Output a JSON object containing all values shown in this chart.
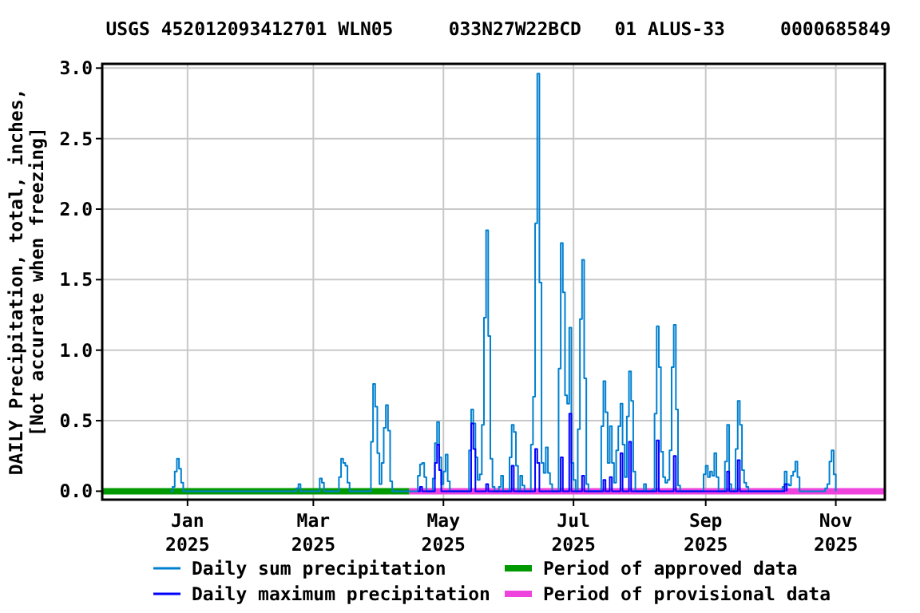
{
  "chart_data": {
    "type": "step",
    "title": "USGS 452012093412701 WLN05     033N27W22BCD   01 ALUS-33     0000685849",
    "ylabel": "DAILY Precipitation, total, inches,\n[Not accurate when freezing]",
    "xlim": [
      "2024-11-22",
      "2025-11-24"
    ],
    "xticks": [
      {
        "value": "2025-01-01",
        "label": "Jan\n2025"
      },
      {
        "value": "2025-03-01",
        "label": "Mar\n2025"
      },
      {
        "value": "2025-05-01",
        "label": "May\n2025"
      },
      {
        "value": "2025-07-01",
        "label": "Jul\n2025"
      },
      {
        "value": "2025-09-01",
        "label": "Sep\n2025"
      },
      {
        "value": "2025-11-01",
        "label": "Nov\n2025"
      }
    ],
    "ylim": [
      -0.06,
      3.03
    ],
    "yticks": [
      {
        "value": 0,
        "label": "0.0"
      },
      {
        "value": 0.5,
        "label": "0.5"
      },
      {
        "value": 1,
        "label": "1.0"
      },
      {
        "value": 1.5,
        "label": "1.5"
      },
      {
        "value": 2,
        "label": "2.0"
      },
      {
        "value": 2.5,
        "label": "2.5"
      },
      {
        "value": 3,
        "label": "3.0"
      }
    ],
    "grid": true,
    "legend": "bottom",
    "line_style": "solid",
    "series": [
      {
        "name": "Daily sum precipitation",
        "color": "#0080d0",
        "x": [
          "2024-12-24",
          "2024-12-25",
          "2024-12-26",
          "2024-12-27",
          "2024-12-28",
          "2024-12-29",
          "2024-12-30",
          "2025-02-20",
          "2025-02-21",
          "2025-02-22",
          "2025-02-23",
          "2025-03-03",
          "2025-03-04",
          "2025-03-05",
          "2025-03-06",
          "2025-03-12",
          "2025-03-13",
          "2025-03-14",
          "2025-03-15",
          "2025-03-16",
          "2025-03-17",
          "2025-03-18",
          "2025-03-27",
          "2025-03-28",
          "2025-03-29",
          "2025-03-30",
          "2025-03-31",
          "2025-04-01",
          "2025-04-02",
          "2025-04-03",
          "2025-04-04",
          "2025-04-05",
          "2025-04-06",
          "2025-04-07",
          "2025-04-18",
          "2025-04-19",
          "2025-04-20",
          "2025-04-21",
          "2025-04-22",
          "2025-04-23",
          "2025-04-25",
          "2025-04-26",
          "2025-04-27",
          "2025-04-28",
          "2025-04-29",
          "2025-04-30",
          "2025-05-01",
          "2025-05-02",
          "2025-05-03",
          "2025-05-04",
          "2025-05-12",
          "2025-05-13",
          "2025-05-14",
          "2025-05-15",
          "2025-05-16",
          "2025-05-17",
          "2025-05-18",
          "2025-05-19",
          "2025-05-20",
          "2025-05-21",
          "2025-05-22",
          "2025-05-23",
          "2025-05-24",
          "2025-05-25",
          "2025-05-26",
          "2025-05-27",
          "2025-05-28",
          "2025-05-29",
          "2025-05-31",
          "2025-06-01",
          "2025-06-02",
          "2025-06-03",
          "2025-06-04",
          "2025-06-05",
          "2025-06-06",
          "2025-06-07",
          "2025-06-08",
          "2025-06-10",
          "2025-06-11",
          "2025-06-12",
          "2025-06-13",
          "2025-06-14",
          "2025-06-15",
          "2025-06-16",
          "2025-06-17",
          "2025-06-18",
          "2025-06-19",
          "2025-06-20",
          "2025-06-21",
          "2025-06-23",
          "2025-06-24",
          "2025-06-25",
          "2025-06-26",
          "2025-06-27",
          "2025-06-28",
          "2025-06-29",
          "2025-06-30",
          "2025-07-01",
          "2025-07-02",
          "2025-07-03",
          "2025-07-04",
          "2025-07-05",
          "2025-07-06",
          "2025-07-07",
          "2025-07-08",
          "2025-07-13",
          "2025-07-14",
          "2025-07-15",
          "2025-07-16",
          "2025-07-17",
          "2025-07-18",
          "2025-07-19",
          "2025-07-20",
          "2025-07-21",
          "2025-07-22",
          "2025-07-23",
          "2025-07-24",
          "2025-07-25",
          "2025-07-26",
          "2025-07-27",
          "2025-07-28",
          "2025-07-29",
          "2025-07-30",
          "2025-08-02",
          "2025-08-03",
          "2025-08-04",
          "2025-08-06",
          "2025-08-07",
          "2025-08-08",
          "2025-08-09",
          "2025-08-10",
          "2025-08-11",
          "2025-08-12",
          "2025-08-13",
          "2025-08-14",
          "2025-08-15",
          "2025-08-16",
          "2025-08-17",
          "2025-08-18",
          "2025-08-19",
          "2025-08-20",
          "2025-08-30",
          "2025-08-31",
          "2025-09-01",
          "2025-09-02",
          "2025-09-03",
          "2025-09-04",
          "2025-09-05",
          "2025-09-06",
          "2025-09-07",
          "2025-09-09",
          "2025-09-10",
          "2025-09-11",
          "2025-09-12",
          "2025-09-13",
          "2025-09-14",
          "2025-09-15",
          "2025-09-16",
          "2025-09-17",
          "2025-09-18",
          "2025-09-19",
          "2025-09-20",
          "2025-09-21",
          "2025-10-06",
          "2025-10-07",
          "2025-10-08",
          "2025-10-09",
          "2025-10-10",
          "2025-10-11",
          "2025-10-12",
          "2025-10-13",
          "2025-10-14",
          "2025-10-15",
          "2025-10-26",
          "2025-10-27",
          "2025-10-28",
          "2025-10-29",
          "2025-10-30",
          "2025-10-31",
          "2025-11-01"
        ],
        "values": [
          0,
          0.03,
          0.14,
          0.23,
          0.16,
          0.06,
          0,
          0,
          0.02,
          0.05,
          0,
          0,
          0.09,
          0.06,
          0,
          0,
          0.1,
          0.23,
          0.2,
          0.18,
          0.06,
          0,
          0,
          0.35,
          0.76,
          0.6,
          0.27,
          0.05,
          0.2,
          0.45,
          0.61,
          0.43,
          0.07,
          0,
          0,
          0.11,
          0.19,
          0.2,
          0.1,
          0,
          0,
          0.09,
          0.34,
          0.49,
          0.24,
          0.05,
          0.14,
          0.26,
          0.07,
          0,
          0,
          0.29,
          0.58,
          0.48,
          0.24,
          0.08,
          0.12,
          0.47,
          1.23,
          1.85,
          1.1,
          0.23,
          0.03,
          0,
          0,
          0.03,
          0.11,
          0,
          0,
          0.24,
          0.47,
          0.42,
          0.18,
          0,
          0.11,
          0.04,
          0,
          0,
          0.33,
          0.67,
          1.9,
          2.96,
          1.48,
          0.2,
          0.13,
          0.31,
          0.13,
          0.05,
          0,
          0,
          0.87,
          1.76,
          1.41,
          0.68,
          0.62,
          1.16,
          0.2,
          0.08,
          0,
          0.44,
          1.22,
          1.64,
          0.8,
          0.05,
          0,
          0,
          0.46,
          0.78,
          0.56,
          0.2,
          0.46,
          0.2,
          0.06,
          0.29,
          0.46,
          0.62,
          0.33,
          0.1,
          0.53,
          0.85,
          0.64,
          0.14,
          0,
          0,
          0.05,
          0,
          0,
          0.01,
          0.55,
          1.17,
          0.88,
          0.28,
          0.1,
          0.06,
          0.08,
          0.29,
          0.88,
          1.18,
          0.58,
          0.04,
          0,
          0,
          0.12,
          0.18,
          0.1,
          0.14,
          0.11,
          0.27,
          0.1,
          0,
          0,
          0.21,
          0.47,
          0.05,
          0,
          0,
          0.3,
          0.64,
          0.47,
          0.15,
          0.06,
          0.03,
          0,
          0,
          0.03,
          0.14,
          0.05,
          0.04,
          0.11,
          0.14,
          0.21,
          0.1,
          0,
          0,
          0.02,
          0.05,
          0.21,
          0.29,
          0.12,
          0
        ]
      },
      {
        "name": "Daily maximum precipitation",
        "color": "#0000ff",
        "x": [
          "2025-04-19",
          "2025-04-20",
          "2025-04-21",
          "2025-04-26",
          "2025-04-27",
          "2025-04-28",
          "2025-04-29",
          "2025-04-30",
          "2025-05-13",
          "2025-05-14",
          "2025-05-15",
          "2025-05-16",
          "2025-05-20",
          "2025-05-21",
          "2025-05-22",
          "2025-06-01",
          "2025-06-02",
          "2025-06-03",
          "2025-06-12",
          "2025-06-13",
          "2025-06-14",
          "2025-06-15",
          "2025-06-24",
          "2025-06-25",
          "2025-06-26",
          "2025-06-28",
          "2025-06-29",
          "2025-06-30",
          "2025-07-04",
          "2025-07-05",
          "2025-07-06",
          "2025-07-14",
          "2025-07-15",
          "2025-07-16",
          "2025-07-17",
          "2025-07-18",
          "2025-07-19",
          "2025-07-22",
          "2025-07-23",
          "2025-07-24",
          "2025-07-26",
          "2025-07-27",
          "2025-07-28",
          "2025-08-08",
          "2025-08-09",
          "2025-08-10",
          "2025-08-16",
          "2025-08-17",
          "2025-08-18",
          "2025-09-10",
          "2025-09-11",
          "2025-09-12",
          "2025-09-15",
          "2025-09-16",
          "2025-09-17",
          "2025-10-07",
          "2025-10-08",
          "2025-10-09"
        ],
        "values": [
          0,
          0.03,
          0,
          0,
          0.2,
          0.33,
          0.15,
          0,
          0,
          0.48,
          0.3,
          0,
          0,
          0.05,
          0,
          0,
          0.18,
          0,
          0,
          0.3,
          0.2,
          0,
          0,
          0.24,
          0,
          0,
          0.55,
          0,
          0,
          0.11,
          0,
          0,
          0.08,
          0,
          0,
          0.1,
          0,
          0,
          0.27,
          0,
          0,
          0.35,
          0,
          0,
          0.36,
          0,
          0,
          0.25,
          0,
          0,
          0.14,
          0,
          0,
          0.22,
          0,
          0,
          0.05,
          0
        ]
      },
      {
        "name": "Period of approved data",
        "type": "line",
        "color": "#009900",
        "x": [
          "2024-11-22",
          "2025-04-15"
        ],
        "values": [
          0,
          0
        ]
      },
      {
        "name": "Period of provisional data",
        "type": "line",
        "color": "#ee44dd",
        "x": [
          "2025-04-15",
          "2025-11-24"
        ],
        "values": [
          0,
          0
        ]
      }
    ]
  }
}
